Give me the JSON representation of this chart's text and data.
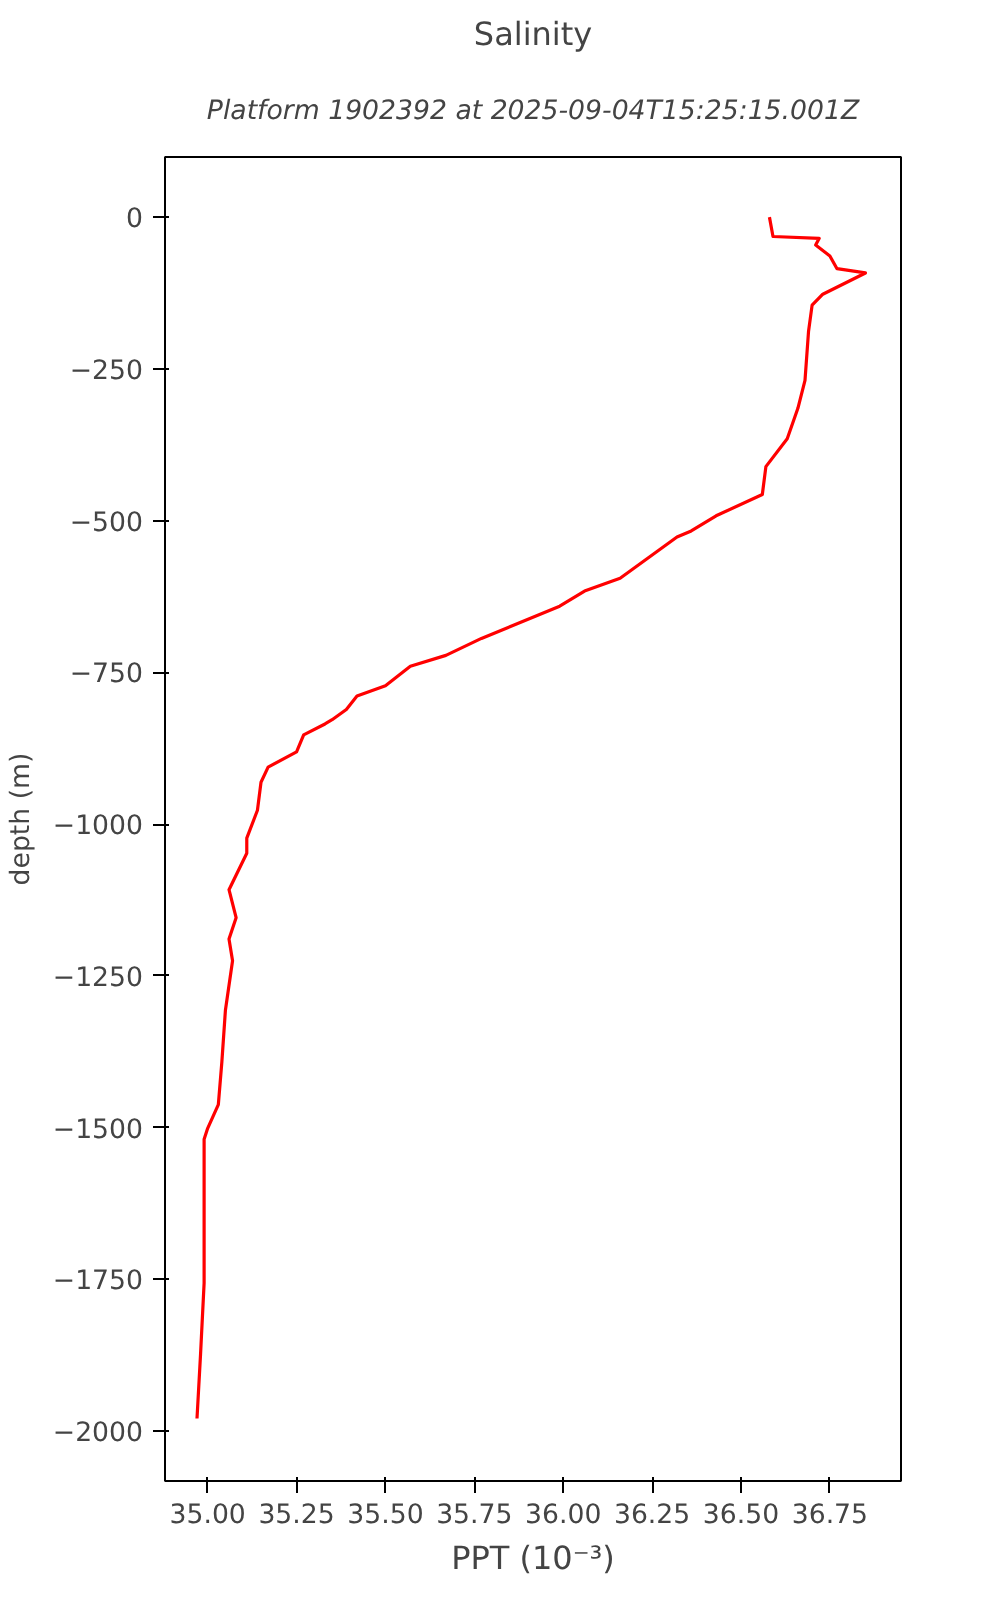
{
  "chart_data": {
    "type": "line",
    "title": "Salinity",
    "subtitle": "Platform 1902392 at 2025-09-04T15:25:15.001Z",
    "xlabel": "PPT (10⁻³)",
    "ylabel": "depth (m)",
    "series": [
      {
        "color": "#ff0000",
        "x": [
          36.58,
          36.59,
          36.72,
          36.71,
          36.75,
          36.77,
          36.85,
          36.73,
          36.7,
          36.69,
          36.68,
          36.66,
          36.63,
          36.57,
          36.56,
          36.43,
          36.36,
          36.32,
          36.16,
          36.06,
          35.99,
          35.77,
          35.67,
          35.57,
          35.5,
          35.42,
          35.39,
          35.35,
          35.33,
          35.27,
          35.25,
          35.17,
          35.15,
          35.14,
          35.11,
          35.11,
          35.06,
          35.08,
          35.06,
          35.07,
          35.05,
          35.04,
          35.03,
          35.0,
          34.99,
          34.99,
          34.99,
          34.98,
          34.97
        ],
        "values": [
          0,
          -32,
          -35,
          -46,
          -64,
          -85,
          -92,
          -127,
          -145,
          -188,
          -269,
          -315,
          -365,
          -411,
          -457,
          -492,
          -517,
          -527,
          -595,
          -616,
          -641,
          -694,
          -722,
          -740,
          -772,
          -789,
          -811,
          -828,
          -835,
          -853,
          -881,
          -906,
          -931,
          -977,
          -1023,
          -1048,
          -1108,
          -1154,
          -1189,
          -1225,
          -1306,
          -1391,
          -1462,
          -1501,
          -1519,
          -1650,
          -1756,
          -1873,
          -1979
        ]
      }
    ],
    "xlim": [
      34.88,
      36.95
    ],
    "ylim": [
      -2082,
      99
    ],
    "xticks": [
      {
        "value": 35.0,
        "label": "35.00"
      },
      {
        "value": 35.25,
        "label": "35.25"
      },
      {
        "value": 35.5,
        "label": "35.50"
      },
      {
        "value": 35.75,
        "label": "35.75"
      },
      {
        "value": 36.0,
        "label": "36.00"
      },
      {
        "value": 36.25,
        "label": "36.25"
      },
      {
        "value": 36.5,
        "label": "36.50"
      },
      {
        "value": 36.75,
        "label": "36.75"
      }
    ],
    "yticks": [
      0,
      {
        "value": -250,
        "label": "−250"
      },
      {
        "value": -500,
        "label": "−500"
      },
      {
        "value": -750,
        "label": "−750"
      },
      {
        "value": -1000,
        "label": "−1000"
      },
      {
        "value": -1250,
        "label": "−1250"
      },
      {
        "value": -1500,
        "label": "−1500"
      },
      {
        "value": -1750,
        "label": "−1750"
      },
      {
        "value": -2000,
        "label": "−2000"
      }
    ],
    "grid": false,
    "line_style": "solid"
  }
}
